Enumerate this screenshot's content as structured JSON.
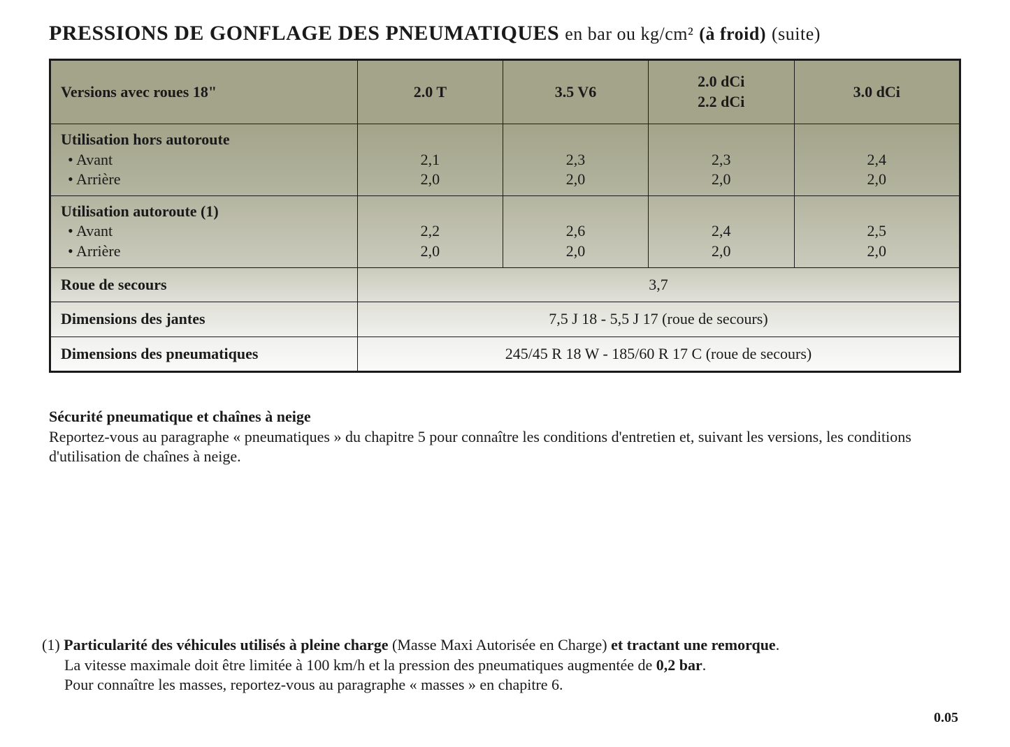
{
  "title": {
    "main": "PRESSIONS DE GONFLAGE DES PNEUMATIQUES",
    "unit": "en bar ou kg/cm²",
    "cold": "(à froid)",
    "suite": "(suite)"
  },
  "table": {
    "header": {
      "versions": "Versions avec roues 18\"",
      "col1": "2.0 T",
      "col2": "3.5 V6",
      "col3_line1": "2.0 dCi",
      "col3_line2": "2.2 dCi",
      "col4": "3.0 dCi"
    },
    "row1": {
      "label": "Utilisation hors autoroute",
      "sub1": "Avant",
      "sub2": "Arrière",
      "c1a": "2,1",
      "c1b": "2,0",
      "c2a": "2,3",
      "c2b": "2,0",
      "c3a": "2,3",
      "c3b": "2,0",
      "c4a": "2,4",
      "c4b": "2,0"
    },
    "row2": {
      "label": "Utilisation autoroute (1)",
      "sub1": "Avant",
      "sub2": "Arrière",
      "c1a": "2,2",
      "c1b": "2,0",
      "c2a": "2,6",
      "c2b": "2,0",
      "c3a": "2,4",
      "c3b": "2,0",
      "c4a": "2,5",
      "c4b": "2,0"
    },
    "row3": {
      "label": "Roue de secours",
      "value": "3,7"
    },
    "row4": {
      "label": "Dimensions des jantes",
      "value": "7,5 J 18 - 5,5 J 17 (roue de secours)"
    },
    "row5": {
      "label": "Dimensions des pneumatiques",
      "value": "245/45 R 18 W - 185/60 R 17 C (roue de secours)"
    }
  },
  "safety": {
    "title": "Sécurité pneumatique et chaînes à neige",
    "body": "Reportez-vous au paragraphe « pneumatiques » du chapitre 5 pour connaître les conditions d'entretien et, suivant les versions, les conditions d'utilisation de chaînes à neige."
  },
  "footnote": {
    "num": "(1)",
    "bold1": "Particularité des véhicules utilisés à pleine charge",
    "paren": "(Masse Maxi Autorisée en Charge)",
    "bold2": "et tractant une remorque",
    "line2a": "La vitesse maximale doit être limitée à 100 km/h et la pression des pneumatiques augmentée de ",
    "line2b": "0,2 bar",
    "line3": "Pour connaître les masses, reportez-vous au paragraphe « masses » en chapitre 6."
  },
  "page_number": "0.05"
}
